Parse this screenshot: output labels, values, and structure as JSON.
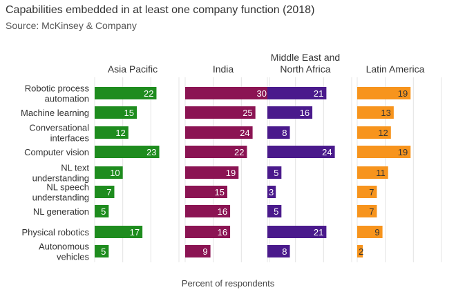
{
  "chart_data": {
    "type": "bar",
    "orientation": "horizontal",
    "layout": "small-multiples",
    "title": "Capabilities embedded in at least one company function (2018)",
    "subtitle": "Source: McKinsey & Company",
    "xlabel": "Percent of respondents",
    "ylabel": "",
    "xlim": [
      0,
      30
    ],
    "grid": true,
    "categories": [
      [
        "Robotic process",
        "automation"
      ],
      [
        "Machine learning"
      ],
      [
        "Conversational",
        "interfaces"
      ],
      [
        "Computer vision"
      ],
      [
        "NL text",
        "understanding"
      ],
      [
        "NL speech",
        "understanding"
      ],
      [
        "NL generation"
      ],
      [
        "Physical robotics"
      ],
      [
        "Autonomous",
        "vehicles"
      ]
    ],
    "series": [
      {
        "name": "Asia Pacific",
        "label_lines": [
          "Asia Pacific"
        ],
        "color": "#1e8c1e",
        "label_color": "#ffffff",
        "values": [
          22,
          15,
          12,
          23,
          10,
          7,
          5,
          17,
          5
        ]
      },
      {
        "name": "India",
        "label_lines": [
          "India"
        ],
        "color": "#8b1453",
        "label_color": "#ffffff",
        "values": [
          30,
          25,
          24,
          22,
          19,
          15,
          16,
          16,
          9
        ]
      },
      {
        "name": "Middle East and North Africa",
        "label_lines": [
          "Middle East and",
          "North Africa"
        ],
        "color": "#4a1a8c",
        "label_color": "#ffffff",
        "values": [
          21,
          16,
          8,
          24,
          5,
          3,
          5,
          21,
          8
        ]
      },
      {
        "name": "Latin America",
        "label_lines": [
          "Latin America"
        ],
        "color": "#f7941d",
        "label_color": "#333333",
        "values": [
          19,
          13,
          12,
          19,
          11,
          7,
          7,
          9,
          2
        ]
      }
    ]
  }
}
